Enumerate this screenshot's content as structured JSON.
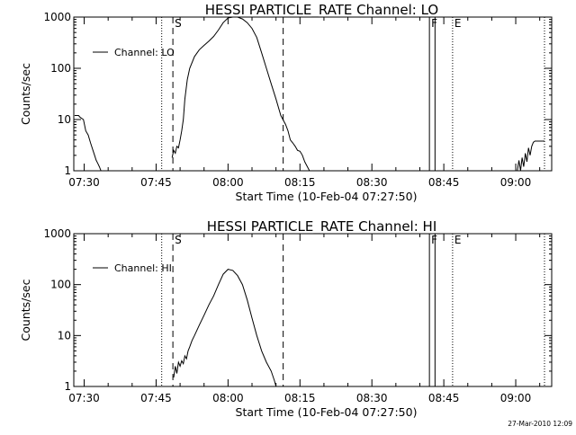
{
  "chart_data": [
    {
      "type": "line",
      "title": "HESSI PARTICLE_RATE Channel: LO",
      "xlabel": "Start Time (10-Feb-04 07:27:50)",
      "ylabel": "Counts/sec",
      "y_scale": "log",
      "ylim": [
        1,
        1000
      ],
      "xlim": [
        "07:27:50",
        "09:07:30"
      ],
      "x_tick_labels": [
        "07:30",
        "07:45",
        "08:00",
        "08:15",
        "08:30",
        "08:45",
        "09:00"
      ],
      "y_tick_labels": [
        "1",
        "10",
        "100",
        "1000"
      ],
      "legend": "Channel: LO",
      "legend_position": "top-left",
      "grid": false,
      "markers": [
        {
          "label": "S",
          "time": "07:48:30",
          "style": "dashed"
        },
        {
          "label": "E",
          "time": "08:46:50",
          "style": "dotted"
        },
        {
          "label": "F",
          "time": "08:42:00",
          "style": "solid"
        }
      ],
      "vlines": [
        {
          "time": "07:46:10",
          "style": "dotted"
        },
        {
          "time": "08:11:30",
          "style": "dashed"
        },
        {
          "time": "08:43:10",
          "style": "solid"
        },
        {
          "time": "09:06:00",
          "style": "dotted"
        }
      ],
      "series": [
        {
          "name": "Channel: LO",
          "segments": [
            {
              "x": [
                "07:28:00",
                "07:28:50",
                "07:29:10",
                "07:29:50",
                "07:30:20",
                "07:30:50",
                "07:31:20",
                "07:31:50",
                "07:32:10",
                "07:32:30",
                "07:32:50",
                "07:33:10",
                "07:33:30"
              ],
              "y": [
                12,
                12,
                11,
                10,
                6,
                5,
                3.5,
                2.5,
                2,
                1.6,
                1.4,
                1.2,
                1
              ]
            },
            {
              "x": [
                "07:48:20",
                "07:48:40",
                "07:49:00",
                "07:49:20",
                "07:49:40",
                "07:50:00",
                "07:50:20",
                "07:50:40",
                "07:51:00",
                "07:51:30",
                "07:52:00",
                "07:53:00",
                "07:54:00",
                "07:55:00",
                "07:56:00",
                "07:57:00",
                "07:58:00",
                "07:59:00",
                "08:00:00",
                "08:01:00",
                "08:02:00",
                "08:03:00",
                "08:04:00",
                "08:05:00",
                "08:06:00",
                "08:07:00",
                "08:08:00",
                "08:09:00",
                "08:10:00",
                "08:11:00",
                "08:12:00",
                "08:12:30",
                "08:13:00",
                "08:13:30",
                "08:14:00",
                "08:14:30",
                "08:15:00",
                "08:15:30",
                "08:16:00",
                "08:17:00"
              ],
              "y": [
                1.8,
                2.5,
                2.2,
                3,
                2.8,
                4,
                6,
                10,
                25,
                60,
                100,
                170,
                230,
                280,
                340,
                420,
                560,
                780,
                960,
                1000,
                1000,
                920,
                780,
                600,
                400,
                200,
                100,
                50,
                25,
                12,
                8,
                6,
                4,
                3.5,
                3,
                2.5,
                2.4,
                2,
                1.5,
                1
              ]
            },
            {
              "x": [
                "09:00:20",
                "09:00:40",
                "09:01:00",
                "09:01:20",
                "09:01:40",
                "09:02:00",
                "09:02:20",
                "09:02:40",
                "09:03:00",
                "09:03:20",
                "09:03:40",
                "09:04:00",
                "09:04:30",
                "09:05:00",
                "09:06:00"
              ],
              "y": [
                1,
                1.6,
                1,
                1.8,
                1.2,
                2.2,
                1.5,
                2.8,
                2,
                3,
                3.6,
                3.8,
                3.8,
                3.8,
                3.8
              ]
            }
          ]
        }
      ]
    },
    {
      "type": "line",
      "title": "HESSI PARTICLE_RATE Channel: HI",
      "xlabel": "Start Time (10-Feb-04 07:27:50)",
      "ylabel": "Counts/sec",
      "y_scale": "log",
      "ylim": [
        1,
        1000
      ],
      "xlim": [
        "07:27:50",
        "09:07:30"
      ],
      "x_tick_labels": [
        "07:30",
        "07:45",
        "08:00",
        "08:15",
        "08:30",
        "08:45",
        "09:00"
      ],
      "y_tick_labels": [
        "1",
        "10",
        "100",
        "1000"
      ],
      "legend": "Channel: HI",
      "legend_position": "top-left",
      "grid": false,
      "markers": [
        {
          "label": "S",
          "time": "07:48:30",
          "style": "dashed"
        },
        {
          "label": "E",
          "time": "08:46:50",
          "style": "dotted"
        },
        {
          "label": "F",
          "time": "08:42:00",
          "style": "solid"
        }
      ],
      "vlines": [
        {
          "time": "07:46:10",
          "style": "dotted"
        },
        {
          "time": "08:11:30",
          "style": "dashed"
        },
        {
          "time": "08:43:10",
          "style": "solid"
        },
        {
          "time": "09:06:00",
          "style": "dotted"
        }
      ],
      "series": [
        {
          "name": "Channel: HI",
          "segments": [
            {
              "x": [
                "07:48:40",
                "07:49:00",
                "07:49:20",
                "07:49:40",
                "07:50:00",
                "07:50:20",
                "07:50:40",
                "07:51:00",
                "07:51:20",
                "07:51:40",
                "07:52:00",
                "07:52:30",
                "07:53:00",
                "07:54:00",
                "07:55:00",
                "07:56:00",
                "07:57:00",
                "07:58:00",
                "07:59:00",
                "08:00:00",
                "08:01:00",
                "08:02:00",
                "08:03:00",
                "08:04:00",
                "08:05:00",
                "08:06:00",
                "08:07:00",
                "08:08:00",
                "08:09:00",
                "08:09:40",
                "08:10:00"
              ],
              "y": [
                1.5,
                2.5,
                1.8,
                3,
                2.5,
                3.2,
                2.8,
                4,
                3.5,
                5,
                6,
                8,
                10,
                16,
                25,
                40,
                60,
                100,
                160,
                200,
                190,
                150,
                100,
                50,
                22,
                10,
                5,
                3,
                2,
                1.3,
                1
              ]
            }
          ]
        }
      ]
    }
  ],
  "legend": {
    "top_label": "Channel: LO",
    "bottom_label": "Channel: HI"
  },
  "footer": {
    "timestamp": "27-Mar-2010 12:09"
  }
}
